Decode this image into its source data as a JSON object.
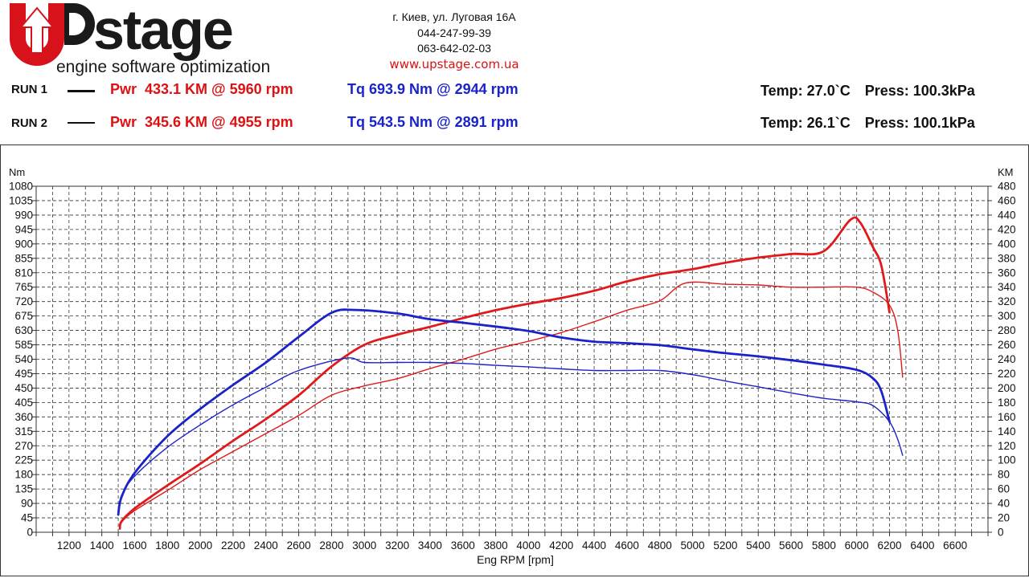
{
  "header": {
    "logo_main": "stage",
    "logo_tagline": "engine software optimization",
    "address": "г. Киев, ул. Луговая 16А",
    "phone1": "044-247-99-39",
    "phone2": "063-642-02-03",
    "website": "www.upstage.com.ua"
  },
  "runs": [
    {
      "label": "RUN 1",
      "pwr": "Pwr  433.1 KM @ 5960 rpm",
      "tq": "Tq 693.9 Nm @ 2944 rpm",
      "temp": "Temp: 27.0`C",
      "press": "Press: 100.3kPa"
    },
    {
      "label": "RUN 2",
      "pwr": "Pwr  345.6 KM @ 4955 rpm",
      "tq": "Tq 543.5 Nm @ 2891 rpm",
      "temp": "Temp: 26.1`C",
      "press": "Press: 100.1kPa"
    }
  ],
  "colors": {
    "power": "#e01a1a",
    "torque": "#1a23c8",
    "grid": "#333333"
  },
  "chart_data": {
    "type": "line",
    "title": "",
    "xlabel": "Eng RPM [rpm]",
    "ylabel_left": "Nm",
    "ylabel_right": "KM",
    "xlim": [
      1000,
      6800
    ],
    "ylim_left": [
      0,
      1080
    ],
    "ylim_right": [
      0,
      480
    ],
    "x_ticks": [
      1200,
      1400,
      1600,
      1800,
      2000,
      2200,
      2400,
      2600,
      2800,
      3000,
      3200,
      3400,
      3600,
      3800,
      4000,
      4200,
      4400,
      4600,
      4800,
      5000,
      5200,
      5400,
      5600,
      5800,
      6000,
      6200,
      6400,
      6600
    ],
    "y_ticks_left": [
      0,
      45,
      90,
      135,
      180,
      225,
      270,
      315,
      360,
      405,
      450,
      495,
      540,
      585,
      630,
      675,
      720,
      765,
      810,
      855,
      900,
      945,
      990,
      1035,
      1080
    ],
    "y_ticks_right": [
      0,
      20,
      40,
      60,
      80,
      100,
      120,
      140,
      160,
      180,
      200,
      220,
      240,
      260,
      280,
      300,
      320,
      340,
      360,
      380,
      400,
      420,
      440,
      460,
      480
    ],
    "grid": true,
    "series": [
      {
        "name": "Pwr RUN 1",
        "axis": "right",
        "color": "#e01a1a",
        "width": 2.8,
        "x": [
          1510,
          1520,
          1600,
          1800,
          2000,
          2200,
          2400,
          2600,
          2800,
          3000,
          3200,
          3400,
          3600,
          3800,
          4000,
          4200,
          4400,
          4600,
          4800,
          5000,
          5200,
          5400,
          5600,
          5800,
          5960,
          6020,
          6100,
          6150,
          6200
        ],
        "y": [
          5,
          15,
          33,
          65,
          95,
          127,
          157,
          190,
          230,
          260,
          274,
          285,
          297,
          308,
          317,
          325,
          335,
          348,
          358,
          365,
          374,
          381,
          386,
          390,
          433.1,
          430,
          395,
          370,
          305
        ]
      },
      {
        "name": "Pwr RUN 2",
        "axis": "right",
        "color": "#e01a1a",
        "width": 1.4,
        "x": [
          1510,
          1520,
          1600,
          1800,
          2000,
          2200,
          2400,
          2600,
          2800,
          3000,
          3200,
          3400,
          3600,
          3800,
          4000,
          4200,
          4400,
          4600,
          4800,
          4955,
          5200,
          5400,
          5600,
          5800,
          6000,
          6100,
          6200,
          6250,
          6280
        ],
        "y": [
          5,
          14,
          30,
          58,
          87,
          112,
          137,
          162,
          190,
          203,
          213,
          227,
          240,
          254,
          265,
          277,
          292,
          308,
          321,
          345.6,
          344,
          343,
          340,
          340,
          340,
          333,
          315,
          280,
          215
        ]
      },
      {
        "name": "Tq RUN 1",
        "axis": "left",
        "color": "#1a23c8",
        "width": 2.8,
        "x": [
          1500,
          1520,
          1600,
          1800,
          2000,
          2200,
          2400,
          2600,
          2800,
          2944,
          3200,
          3400,
          3600,
          3800,
          4000,
          4200,
          4400,
          4600,
          4800,
          5000,
          5200,
          5400,
          5600,
          5800,
          6000,
          6100,
          6150,
          6200
        ],
        "y": [
          55,
          110,
          185,
          300,
          385,
          460,
          530,
          610,
          685,
          693.9,
          683,
          665,
          654,
          642,
          628,
          608,
          595,
          590,
          584,
          571,
          559,
          549,
          537,
          523,
          507,
          480,
          440,
          345
        ]
      },
      {
        "name": "Tq RUN 2",
        "axis": "left",
        "color": "#1a23c8",
        "width": 1.4,
        "x": [
          1500,
          1520,
          1600,
          1800,
          2000,
          2200,
          2400,
          2600,
          2891,
          3000,
          3200,
          3400,
          3600,
          3800,
          4000,
          4200,
          4400,
          4600,
          4800,
          5000,
          5200,
          5400,
          5600,
          5800,
          6000,
          6100,
          6200,
          6250,
          6280
        ],
        "y": [
          60,
          115,
          175,
          265,
          335,
          398,
          453,
          505,
          543.5,
          530,
          530,
          530,
          527,
          521,
          516,
          510,
          505,
          505,
          505,
          492,
          472,
          454,
          435,
          418,
          407,
          395,
          345,
          290,
          240
        ]
      }
    ]
  }
}
